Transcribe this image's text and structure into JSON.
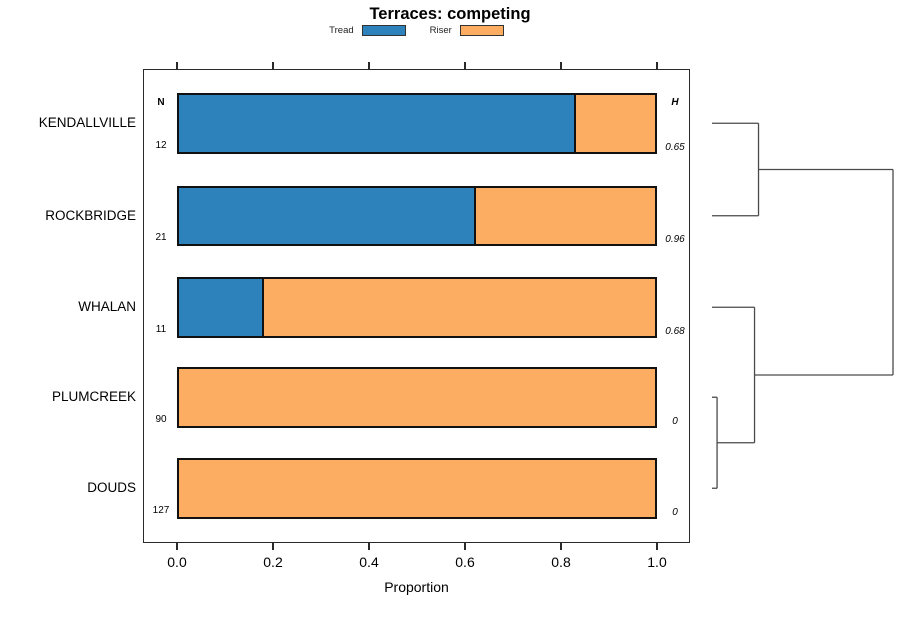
{
  "chart_data": {
    "type": "bar",
    "stacked": true,
    "orientation": "horizontal",
    "title": "Terraces: competing",
    "xlabel": "Proportion",
    "xlim": [
      0,
      1
    ],
    "xticks": [
      "0.0",
      "0.2",
      "0.4",
      "0.6",
      "0.8",
      "1.0"
    ],
    "grid": false,
    "legend_position": "top-center",
    "categories": [
      "KENDALLVILLE",
      "ROCKBRIDGE",
      "WHALAN",
      "PLUMCREEK",
      "DOUDS"
    ],
    "series": [
      {
        "name": "Tread",
        "color": "#2E82BC",
        "values": [
          0.83,
          0.62,
          0.18,
          0,
          0
        ]
      },
      {
        "name": "Riser",
        "color": "#FCAD61",
        "values": [
          0.17,
          0.38,
          0.82,
          1,
          1
        ]
      }
    ],
    "left_column": {
      "header": "N",
      "values": [
        "12",
        "21",
        "11",
        "90",
        "127"
      ]
    },
    "right_column": {
      "header": "H",
      "values": [
        "0.65",
        "0.96",
        "0.68",
        "0",
        "0"
      ]
    },
    "dendrogram": {
      "axis_max": 1,
      "line_color": "#4a4a4a",
      "tree": {
        "height": 1,
        "children": [
          {
            "height": 0.257,
            "children": [
              {
                "leaf": 0
              },
              {
                "leaf": 1
              }
            ]
          },
          {
            "height": 0.235,
            "children": [
              {
                "leaf": 2
              },
              {
                "height": 0.028,
                "children": [
                  {
                    "leaf": 3
                  },
                  {
                    "leaf": 4
                  }
                ]
              }
            ]
          }
        ]
      }
    }
  }
}
